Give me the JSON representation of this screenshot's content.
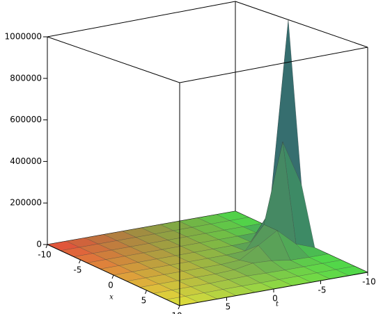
{
  "chart_data": {
    "type": "surface3d",
    "x_label": "x",
    "t_label": "t",
    "x": [
      -10,
      -8,
      -6,
      -4,
      -2,
      0,
      2,
      4,
      6,
      8,
      10
    ],
    "t": [
      -10,
      -8,
      -6,
      -4,
      -2,
      0,
      2,
      4,
      6,
      8,
      10
    ],
    "z": [
      [
        0,
        0,
        0,
        0,
        0,
        0,
        0,
        0,
        0,
        0,
        0
      ],
      [
        0,
        0,
        0,
        0,
        0,
        0,
        0,
        0,
        0,
        0,
        0
      ],
      [
        0,
        0,
        0,
        0,
        0,
        0,
        0,
        0,
        0,
        0,
        0
      ],
      [
        69300,
        600,
        0,
        0,
        0,
        0,
        0,
        0,
        0,
        0,
        0
      ],
      [
        1000000,
        125000,
        2000,
        0,
        0,
        0,
        0,
        0,
        0,
        0,
        0
      ],
      [
        262500,
        475000,
        110000,
        4000,
        24,
        0,
        0,
        0,
        0,
        0,
        0
      ],
      [
        1260,
        33000,
        110000,
        57000,
        5000,
        66,
        0,
        0,
        0,
        0,
        0
      ],
      [
        0,
        0,
        2000,
        15000,
        19000,
        3700,
        130,
        0,
        0,
        0,
        0
      ],
      [
        0,
        0,
        0,
        70,
        1300,
        3700,
        1900,
        150,
        0,
        0,
        0
      ],
      [
        0,
        0,
        0,
        0,
        0,
        66,
        500,
        570,
        120,
        0,
        0
      ],
      [
        0,
        0,
        0,
        0,
        0,
        0,
        0,
        40,
        120,
        57,
        0
      ]
    ],
    "xlim": [
      -10,
      10
    ],
    "tlim": [
      -10,
      10
    ],
    "zlim": [
      0,
      1000000
    ],
    "xticks": [
      -10,
      -5,
      0,
      5,
      10
    ],
    "tticks": [
      -10,
      -5,
      0,
      5
    ],
    "zticks": [
      0,
      200000,
      400000,
      600000,
      800000,
      1000000
    ],
    "colorscale": [
      "#e8473a",
      "#e4e43a",
      "#4ad84a"
    ],
    "high_color": "#2d4f7a"
  }
}
